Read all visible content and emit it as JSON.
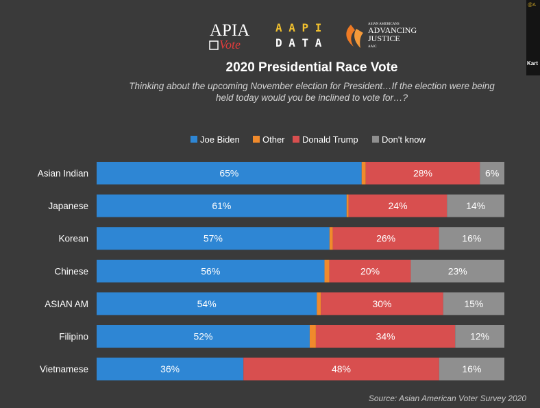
{
  "logos": {
    "apia_top": "APIA",
    "apia_bottom": "Vote",
    "aapi_top": "A A P I",
    "aapi_bottom": "D A T A",
    "aaj_small": "ASIAN AMERICANS",
    "aaj_line1": "ADVANCING",
    "aaj_line2": "JUSTICE",
    "aaj_abbrev": "AAJC"
  },
  "webcam": {
    "tag": "@A",
    "name": "Kart"
  },
  "colors": {
    "background": "#3a3a3a",
    "biden": "#2e86d4",
    "other": "#f08a2c",
    "trump": "#d84f4f",
    "dont_know": "#8f8f8f",
    "text": "#ffffff",
    "muted": "#c8c8c8"
  },
  "chart_data": {
    "type": "bar",
    "orientation": "horizontal",
    "stacked": true,
    "percent": true,
    "title": "2020 Presidential Race Vote",
    "subtitle_lines": [
      "Thinking about the upcoming November election for President…If the election were being",
      "held today would you be inclined to vote for…?"
    ],
    "source": "Source: Asian American Voter Survey 2020",
    "legend_position": "top",
    "categories": [
      "Asian Indian",
      "Japanese",
      "Korean",
      "Chinese",
      "ASIAN AM",
      "Filipino",
      "Vietnamese"
    ],
    "series": [
      {
        "name": "Joe Biden",
        "color": "#2e86d4",
        "values": [
          65,
          61,
          57,
          56,
          54,
          52,
          36
        ],
        "labels": [
          "65%",
          "61%",
          "57%",
          "56%",
          "54%",
          "52%",
          "36%"
        ]
      },
      {
        "name": "Other",
        "color": "#f08a2c",
        "values": [
          1,
          0.5,
          0.8,
          1.2,
          1,
          1.5,
          0
        ],
        "labels": [
          "",
          "",
          "",
          "",
          "",
          "",
          ""
        ]
      },
      {
        "name": "Donald Trump",
        "color": "#d84f4f",
        "values": [
          28,
          24,
          26,
          20,
          30,
          34,
          48
        ],
        "labels": [
          "28%",
          "24%",
          "26%",
          "20%",
          "30%",
          "34%",
          "48%"
        ]
      },
      {
        "name": "Don't know",
        "color": "#8f8f8f",
        "values": [
          6,
          14,
          16,
          23,
          15,
          12,
          16
        ],
        "labels": [
          "6%",
          "14%",
          "16%",
          "23%",
          "15%",
          "12%",
          "16%"
        ]
      }
    ]
  }
}
